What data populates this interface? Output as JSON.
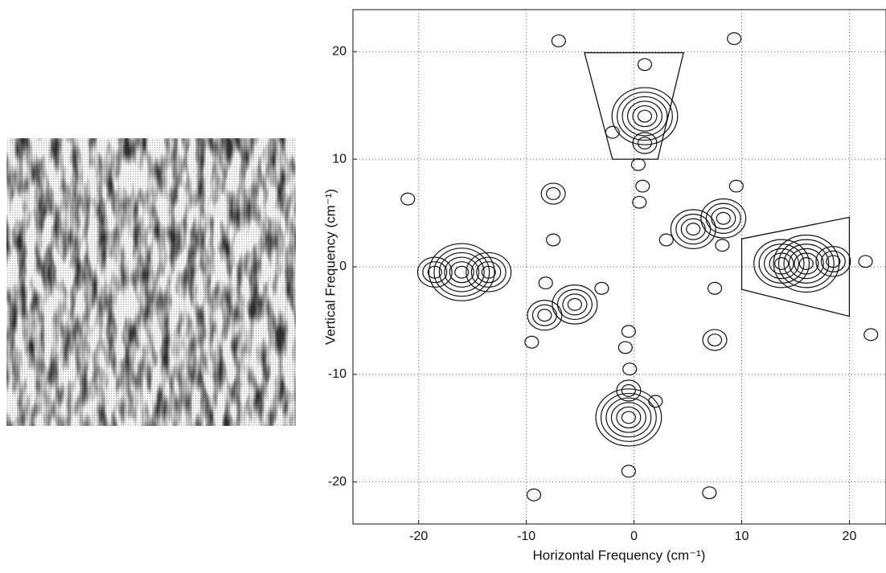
{
  "chart_data": {
    "type": "contour",
    "xlabel": "Horizontal Frequency (cm⁻¹)",
    "ylabel": "Vertical Frequency (cm⁻¹)",
    "xlim": [
      -26.1,
      23.4
    ],
    "ylim": [
      -23.9,
      23.9
    ],
    "xticks": [
      -20,
      -10,
      0,
      10,
      20
    ],
    "yticks": [
      -20,
      -10,
      0,
      10,
      20
    ],
    "grid": true,
    "color": "#111111",
    "peaks": {
      "x": [
        1,
        -0.5,
        16,
        13.7,
        -16,
        -13.5,
        5.5,
        -5.5,
        8.3,
        -8.3,
        -7.5,
        7.5,
        18.5,
        -18.5,
        1,
        -0.5,
        -7,
        9.3,
        -9.3,
        7,
        -21,
        22,
        21.5,
        0.4,
        -0.4,
        0.8,
        -0.8,
        9.5,
        -9.5,
        -7.5,
        7.5,
        -8.2,
        8.2,
        -3,
        3,
        0.5,
        -0.5,
        1,
        -0.5,
        -2,
        2
      ],
      "y": [
        14,
        -14,
        0.3,
        0.3,
        -0.5,
        -0.5,
        3.5,
        -3.5,
        4.5,
        -4.5,
        6.8,
        -6.8,
        0.5,
        -0.5,
        11.5,
        -11.5,
        21,
        21.2,
        -21.2,
        -21,
        6.3,
        -6.3,
        0.5,
        9.5,
        -9.5,
        7.5,
        -7.5,
        7.5,
        -7,
        2.5,
        -2,
        -1.5,
        2,
        -2,
        2.5,
        6,
        -6,
        18.8,
        -19,
        12.5,
        -12.5
      ],
      "rings": [
        6,
        6,
        6,
        5,
        6,
        4,
        4,
        4,
        4,
        3,
        2,
        2,
        3,
        3,
        2,
        2,
        1,
        1,
        1,
        1,
        1,
        1,
        1,
        1,
        1,
        1,
        1,
        1,
        1,
        1,
        1,
        1,
        1,
        1,
        1,
        1,
        1,
        1,
        1,
        1,
        1
      ]
    },
    "regions": [
      {
        "x": [
          -4.6,
          4.6,
          2.2,
          -2
        ],
        "y": [
          19.9,
          19.9,
          10,
          10
        ]
      },
      {
        "x": [
          10,
          20,
          20,
          10
        ],
        "y": [
          2.6,
          4.6,
          -4.6,
          -2.1
        ]
      }
    ]
  }
}
